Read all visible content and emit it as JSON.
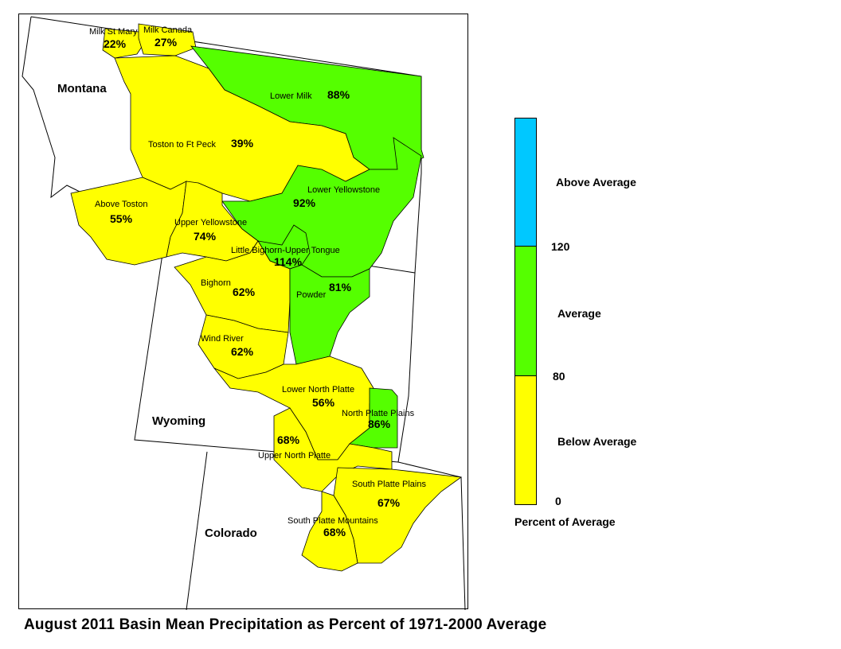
{
  "caption": "August 2011 Basin Mean Precipitation as Percent of 1971-2000 Average",
  "colors": {
    "below": "#ffff00",
    "average": "#55ff00",
    "above": "#00c8ff",
    "outline": "#000000"
  },
  "states": {
    "montana": "Montana",
    "wyoming": "Wyoming",
    "colorado": "Colorado"
  },
  "basins": [
    {
      "name": "Milk St Mary",
      "value": "22%",
      "category": "below"
    },
    {
      "name": "Milk Canada",
      "value": "27%",
      "category": "below"
    },
    {
      "name": "Lower Milk",
      "value": "88%",
      "category": "average"
    },
    {
      "name": "Toston to Ft Peck",
      "value": "39%",
      "category": "below"
    },
    {
      "name": "Above Toston",
      "value": "55%",
      "category": "below"
    },
    {
      "name": "Lower Yellowstone",
      "value": "92%",
      "category": "average"
    },
    {
      "name": "Upper Yellowstone",
      "value": "74%",
      "category": "below"
    },
    {
      "name": "Little Bighorn-Upper Tongue",
      "value": "114%",
      "category": "average"
    },
    {
      "name": "Bighorn",
      "value": "62%",
      "category": "below"
    },
    {
      "name": "Powder",
      "value": "81%",
      "category": "average"
    },
    {
      "name": "Wind River",
      "value": "62%",
      "category": "below"
    },
    {
      "name": "Lower North Platte",
      "value": "56%",
      "category": "below"
    },
    {
      "name": "North Platte Plains",
      "value": "86%",
      "category": "average"
    },
    {
      "name": "",
      "value": "68%",
      "category": "below"
    },
    {
      "name": "Upper North Platte",
      "value": "",
      "category": "below"
    },
    {
      "name": "South Platte Plains",
      "value": "67%",
      "category": "below"
    },
    {
      "name": "South Platte Mountains",
      "value": "68%",
      "category": "below"
    }
  ],
  "legend": {
    "title": "Percent of Average",
    "categories": [
      {
        "label": "Above Average",
        "color": "#00c8ff"
      },
      {
        "label": "Average",
        "color": "#55ff00"
      },
      {
        "label": "Below Average",
        "color": "#ffff00"
      }
    ],
    "ticks": [
      "120",
      "80",
      "0"
    ]
  }
}
